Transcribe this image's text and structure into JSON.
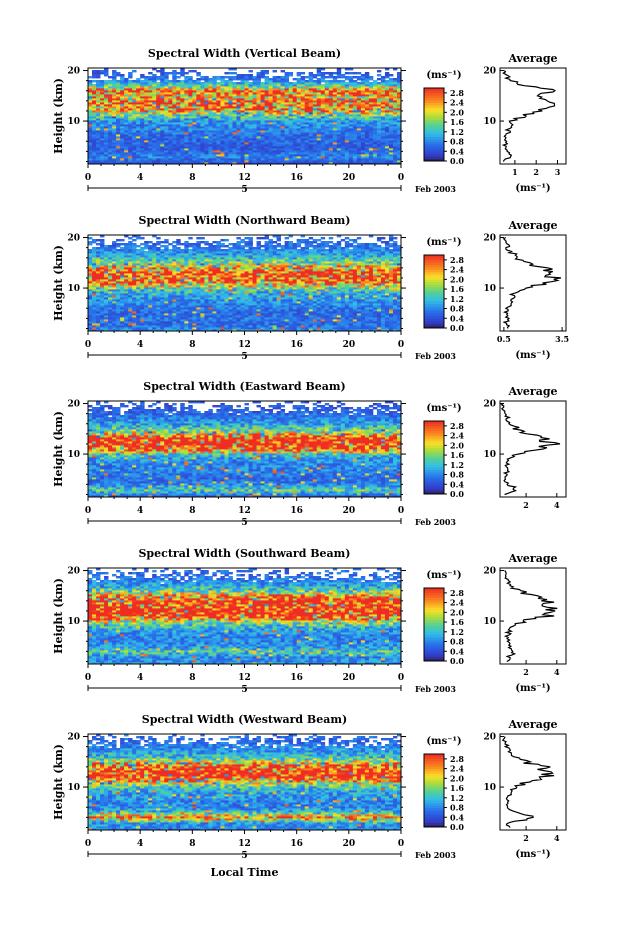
{
  "chart_data": [
    {
      "type": "heatmap",
      "title": "Spectral Width (Vertical Beam)",
      "ylabel": "Height (km)",
      "x_ticks": [
        "0",
        "4",
        "8",
        "12",
        "16",
        "20",
        "0"
      ],
      "y_ticks": [
        "20",
        "10"
      ],
      "xlim": [
        0,
        24
      ],
      "ylim": [
        1.5,
        20.5
      ],
      "date_day": "5",
      "date_label": "Feb 2003",
      "colorbar": {
        "unit": "(ms⁻¹)",
        "ticks": [
          "2.8",
          "2.4",
          "2.0",
          "1.6",
          "1.2",
          "0.8",
          "0.4",
          "0.0"
        ],
        "range": [
          0,
          3.0
        ]
      },
      "average": {
        "title": "Average",
        "xlabel": "(ms⁻¹)",
        "x_ticks": [
          "1",
          "2",
          "3"
        ],
        "xlim": [
          0.3,
          3.4
        ],
        "y_ticks": [
          "20",
          "10"
        ],
        "profile": [
          [
            2,
            0.5
          ],
          [
            3,
            0.8
          ],
          [
            4,
            0.6
          ],
          [
            5,
            0.5
          ],
          [
            6,
            0.6
          ],
          [
            7,
            0.6
          ],
          [
            8,
            0.7
          ],
          [
            9,
            0.8
          ],
          [
            10,
            0.9
          ],
          [
            11,
            1.4
          ],
          [
            12,
            2.3
          ],
          [
            13,
            2.6
          ],
          [
            14,
            2.7
          ],
          [
            15,
            2.2
          ],
          [
            16,
            2.9
          ],
          [
            17,
            1.4
          ],
          [
            18,
            0.8
          ],
          [
            19,
            0.6
          ],
          [
            20,
            0.5
          ]
        ]
      }
    },
    {
      "type": "heatmap",
      "title": "Spectral Width (Northward Beam)",
      "ylabel": "Height (km)",
      "x_ticks": [
        "0",
        "4",
        "8",
        "12",
        "16",
        "20",
        "0"
      ],
      "y_ticks": [
        "20",
        "10"
      ],
      "xlim": [
        0,
        24
      ],
      "ylim": [
        1.5,
        20.5
      ],
      "date_day": "5",
      "date_label": "Feb 2003",
      "colorbar": {
        "unit": "(ms⁻¹)",
        "ticks": [
          "2.8",
          "2.4",
          "2.0",
          "1.6",
          "1.2",
          "0.8",
          "0.4",
          "0.0"
        ],
        "range": [
          0,
          3.0
        ]
      },
      "average": {
        "title": "Average",
        "xlabel": "(ms⁻¹)",
        "x_ticks": [
          "0.5",
          "3.5"
        ],
        "xlim": [
          0.3,
          3.7
        ],
        "y_ticks": [
          "20",
          "10"
        ],
        "profile": [
          [
            2,
            0.8
          ],
          [
            3,
            0.6
          ],
          [
            4,
            0.7
          ],
          [
            5,
            0.6
          ],
          [
            6,
            0.7
          ],
          [
            7,
            0.8
          ],
          [
            8,
            0.9
          ],
          [
            9,
            1.0
          ],
          [
            10,
            1.5
          ],
          [
            11,
            2.6
          ],
          [
            12,
            3.0
          ],
          [
            13,
            3.2
          ],
          [
            14,
            2.4
          ],
          [
            15,
            1.6
          ],
          [
            16,
            1.2
          ],
          [
            17,
            0.9
          ],
          [
            18,
            0.7
          ],
          [
            19,
            0.6
          ],
          [
            20,
            0.6
          ]
        ]
      }
    },
    {
      "type": "heatmap",
      "title": "Spectral Width (Eastward Beam)",
      "ylabel": "Height (km)",
      "x_ticks": [
        "0",
        "4",
        "8",
        "12",
        "16",
        "20",
        "0"
      ],
      "y_ticks": [
        "20",
        "10"
      ],
      "xlim": [
        0,
        24
      ],
      "ylim": [
        1.5,
        20.5
      ],
      "date_day": "5",
      "date_label": "Feb 2003",
      "colorbar": {
        "unit": "(ms⁻¹)",
        "ticks": [
          "2.8",
          "2.4",
          "2.0",
          "1.6",
          "1.2",
          "0.8",
          "0.4",
          "0.0"
        ],
        "range": [
          0,
          3.0
        ]
      },
      "average": {
        "title": "Average",
        "xlabel": "",
        "x_ticks": [
          "2",
          "4"
        ],
        "xlim": [
          0.3,
          4.6
        ],
        "y_ticks": [
          "20",
          "10"
        ],
        "profile": [
          [
            2,
            0.7
          ],
          [
            3,
            1.4
          ],
          [
            4,
            0.8
          ],
          [
            5,
            0.6
          ],
          [
            6,
            0.7
          ],
          [
            7,
            0.8
          ],
          [
            8,
            0.8
          ],
          [
            9,
            0.9
          ],
          [
            10,
            1.3
          ],
          [
            11,
            3.0
          ],
          [
            12,
            3.6
          ],
          [
            13,
            3.3
          ],
          [
            14,
            2.1
          ],
          [
            15,
            1.4
          ],
          [
            16,
            1.0
          ],
          [
            17,
            0.8
          ],
          [
            18,
            0.6
          ],
          [
            19,
            0.5
          ],
          [
            20,
            0.5
          ]
        ]
      }
    },
    {
      "type": "heatmap",
      "title": "Spectral Width (Southward Beam)",
      "ylabel": "Height (km)",
      "x_ticks": [
        "0",
        "4",
        "8",
        "12",
        "16",
        "20",
        "0"
      ],
      "y_ticks": [
        "20",
        "10"
      ],
      "xlim": [
        0,
        24
      ],
      "ylim": [
        1.5,
        20.5
      ],
      "date_day": "5",
      "date_label": "Feb 2003",
      "colorbar": {
        "unit": "(ms⁻¹)",
        "ticks": [
          "2.8",
          "2.4",
          "2.0",
          "1.6",
          "1.2",
          "0.8",
          "0.4",
          "0.0"
        ],
        "range": [
          0,
          3.0
        ]
      },
      "average": {
        "title": "Average",
        "xlabel": "(ms⁻¹)",
        "x_ticks": [
          "2",
          "4"
        ],
        "xlim": [
          0.3,
          4.6
        ],
        "y_ticks": [
          "20",
          "10"
        ],
        "profile": [
          [
            2,
            0.9
          ],
          [
            3,
            0.8
          ],
          [
            4,
            1.4
          ],
          [
            5,
            0.9
          ],
          [
            6,
            0.8
          ],
          [
            7,
            0.8
          ],
          [
            8,
            0.9
          ],
          [
            9,
            1.2
          ],
          [
            10,
            1.8
          ],
          [
            11,
            3.4
          ],
          [
            12,
            3.9
          ],
          [
            13,
            3.2
          ],
          [
            14,
            3.6
          ],
          [
            15,
            2.4
          ],
          [
            16,
            1.5
          ],
          [
            17,
            1.0
          ],
          [
            18,
            0.8
          ],
          [
            19,
            0.6
          ],
          [
            20,
            0.6
          ]
        ]
      }
    },
    {
      "type": "heatmap",
      "title": "Spectral Width (Westward Beam)",
      "ylabel": "Height (km)",
      "xlabel": "Local Time",
      "x_ticks": [
        "0",
        "4",
        "8",
        "12",
        "16",
        "20",
        "0"
      ],
      "y_ticks": [
        "20",
        "10"
      ],
      "xlim": [
        0,
        24
      ],
      "ylim": [
        1.5,
        20.5
      ],
      "date_day": "5",
      "date_label": "Feb 2003",
      "colorbar": {
        "unit": "(ms⁻¹)",
        "ticks": [
          "2.8",
          "2.4",
          "2.0",
          "1.6",
          "1.2",
          "0.8",
          "0.4",
          "0.0"
        ],
        "range": [
          0,
          3.0
        ]
      },
      "average": {
        "title": "Average",
        "xlabel": "(ms⁻¹)",
        "x_ticks": [
          "2",
          "4"
        ],
        "xlim": [
          0.3,
          4.6
        ],
        "y_ticks": [
          "20",
          "10"
        ],
        "profile": [
          [
            2,
            0.8
          ],
          [
            3,
            0.9
          ],
          [
            4,
            2.6
          ],
          [
            5,
            1.2
          ],
          [
            6,
            0.8
          ],
          [
            7,
            0.8
          ],
          [
            8,
            0.9
          ],
          [
            9,
            1.0
          ],
          [
            10,
            1.3
          ],
          [
            11,
            2.0
          ],
          [
            12,
            3.2
          ],
          [
            13,
            3.8
          ],
          [
            14,
            3.0
          ],
          [
            15,
            1.9
          ],
          [
            16,
            1.2
          ],
          [
            17,
            1.0
          ],
          [
            18,
            0.8
          ],
          [
            19,
            0.6
          ],
          [
            20,
            0.6
          ]
        ]
      }
    }
  ]
}
